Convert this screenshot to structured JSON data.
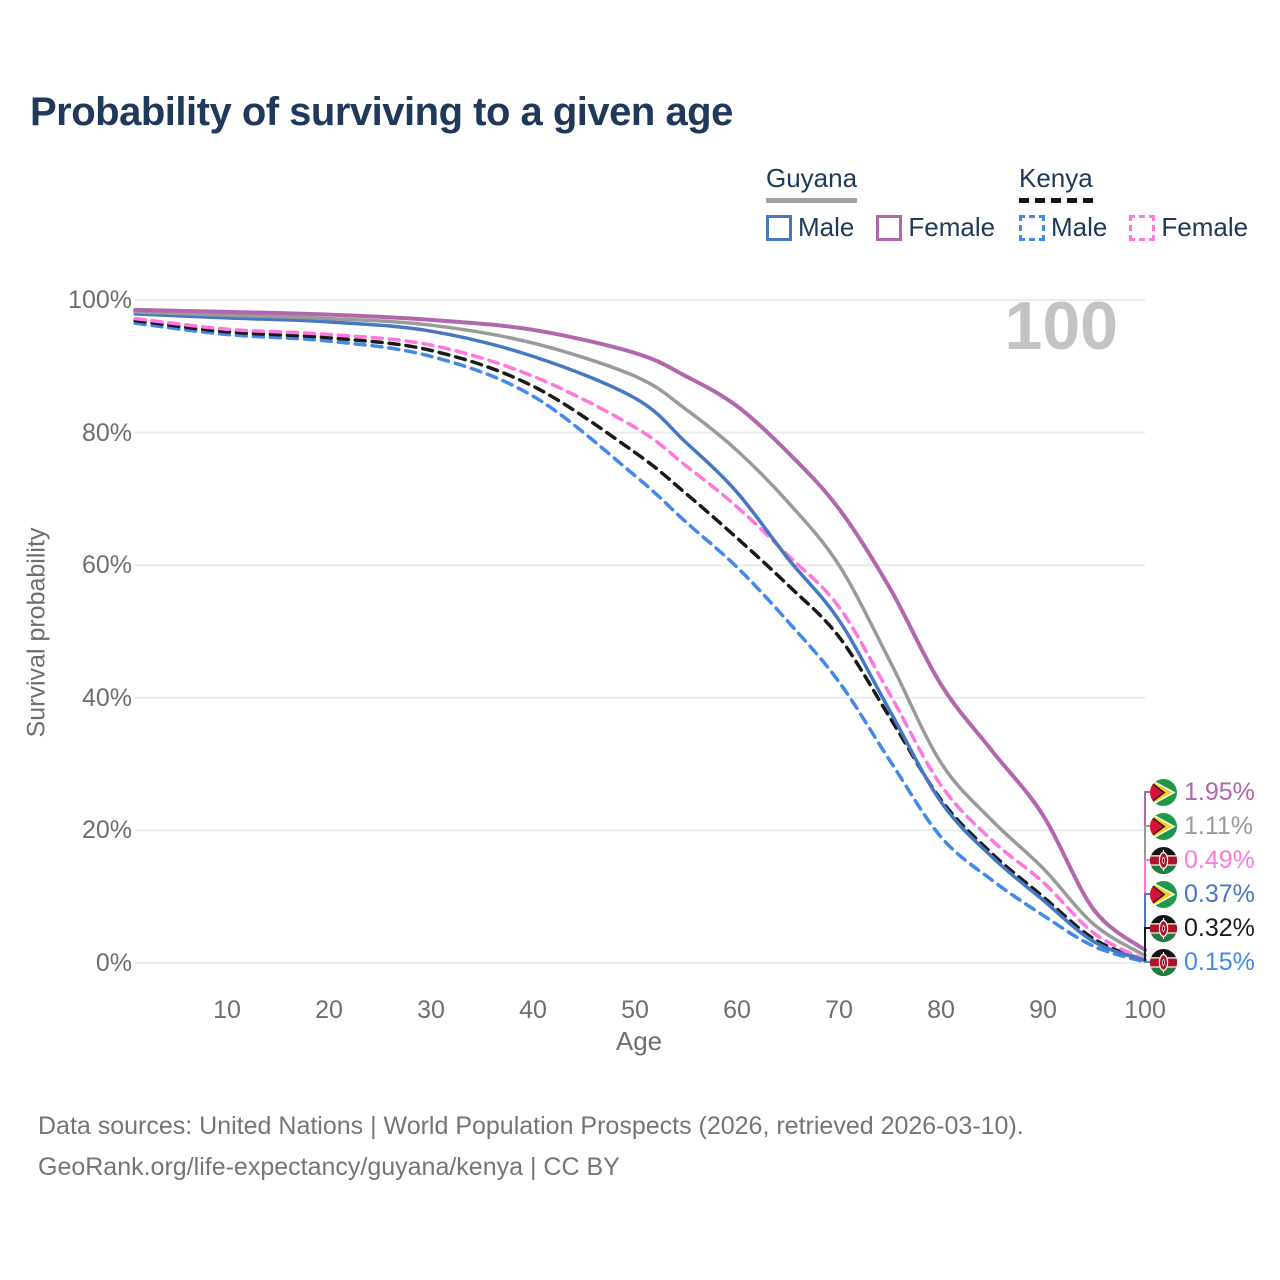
{
  "title": "Probability of surviving to a given age",
  "watermark": "100",
  "legend": {
    "groups": [
      {
        "country": "Guyana",
        "style": "solid",
        "items": [
          {
            "label": "Male",
            "color": "#4677c2"
          },
          {
            "label": "Female",
            "color": "#b266ad"
          }
        ]
      },
      {
        "country": "Kenya",
        "style": "dashed",
        "items": [
          {
            "label": "Male",
            "color": "#4289ec"
          },
          {
            "label": "Female",
            "color": "#ff77dd"
          }
        ]
      }
    ]
  },
  "axes": {
    "y_title": "Survival probability",
    "x_title": "Age",
    "y_ticks": [
      {
        "label": "100%",
        "value": 100
      },
      {
        "label": "80%",
        "value": 80
      },
      {
        "label": "60%",
        "value": 60
      },
      {
        "label": "40%",
        "value": 40
      },
      {
        "label": "20%",
        "value": 20
      },
      {
        "label": "0%",
        "value": 0
      }
    ],
    "x_ticks": [
      {
        "label": "10",
        "value": 10
      },
      {
        "label": "20",
        "value": 20
      },
      {
        "label": "30",
        "value": 30
      },
      {
        "label": "40",
        "value": 40
      },
      {
        "label": "50",
        "value": 50
      },
      {
        "label": "60",
        "value": 60
      },
      {
        "label": "70",
        "value": 70
      },
      {
        "label": "80",
        "value": 80
      },
      {
        "label": "90",
        "value": 90
      },
      {
        "label": "100",
        "value": 100
      }
    ]
  },
  "end_labels": [
    {
      "value": "1.95%",
      "country": "guyana",
      "color": "#b266ad"
    },
    {
      "value": "1.11%",
      "country": "guyana",
      "color": "#9a9a9a"
    },
    {
      "value": "0.49%",
      "country": "kenya",
      "color": "#ff77dd"
    },
    {
      "value": "0.37%",
      "country": "guyana",
      "color": "#4677c2"
    },
    {
      "value": "0.32%",
      "country": "kenya",
      "color": "#1a1a1a"
    },
    {
      "value": "0.15%",
      "country": "kenya",
      "color": "#4289ec"
    }
  ],
  "footer": {
    "line1": "Data sources: United Nations | World Population Prospects (2026, retrieved 2026-03-10).",
    "line2": "GeoRank.org/life-expectancy/guyana/kenya | CC BY"
  },
  "chart_data": {
    "type": "line",
    "title": "Probability of surviving to a given age",
    "xlabel": "Age",
    "ylabel": "Survival probability",
    "xlim": [
      1,
      100
    ],
    "ylim": [
      0,
      100
    ],
    "grid": "horizontal",
    "legend_position": "top-right",
    "x": [
      1,
      10,
      20,
      30,
      40,
      50,
      55,
      60,
      65,
      70,
      75,
      80,
      85,
      90,
      95,
      100
    ],
    "series": [
      {
        "name": "Kenya Male",
        "country": "Kenya",
        "sex": "Male",
        "style": "dashed",
        "color": "#4289ec",
        "end_value": 0.15,
        "values": [
          96.5,
          94.8,
          93.8,
          91.5,
          85.5,
          73.5,
          66.5,
          59.7,
          51.5,
          42.4,
          30.5,
          19.0,
          12.5,
          7.2,
          2.5,
          0.15
        ]
      },
      {
        "name": "Kenya",
        "country": "Kenya",
        "sex": "Both",
        "style": "dashed",
        "color": "#1a1a1a",
        "end_value": 0.32,
        "values": [
          96.9,
          95.2,
          94.3,
          92.4,
          87.0,
          77.0,
          70.8,
          64.1,
          57.0,
          49.2,
          37.0,
          24.6,
          16.5,
          10.0,
          3.6,
          0.32
        ]
      },
      {
        "name": "Kenya Female",
        "country": "Kenya",
        "sex": "Female",
        "style": "dashed",
        "color": "#ff77dd",
        "end_value": 0.49,
        "values": [
          97.2,
          95.6,
          94.8,
          93.2,
          88.5,
          80.8,
          75.0,
          68.8,
          61.5,
          53.7,
          40.5,
          26.8,
          18.5,
          12.2,
          4.5,
          0.49
        ]
      },
      {
        "name": "Guyana Male",
        "country": "Guyana",
        "sex": "Male",
        "style": "solid",
        "color": "#4677c2",
        "end_value": 0.37,
        "values": [
          97.9,
          97.3,
          96.7,
          95.3,
          91.5,
          85.2,
          78.5,
          71.0,
          61.0,
          51.7,
          38.0,
          24.3,
          16.0,
          9.5,
          3.2,
          0.37
        ]
      },
      {
        "name": "Guyana",
        "country": "Guyana",
        "sex": "Both",
        "style": "solid",
        "color": "#9a9a9a",
        "end_value": 1.11,
        "values": [
          98.2,
          97.7,
          97.2,
          96.2,
          93.5,
          88.5,
          83.5,
          77.3,
          69.5,
          60.0,
          45.5,
          30.2,
          21.5,
          14.3,
          5.8,
          1.11
        ]
      },
      {
        "name": "Guyana Female",
        "country": "Guyana",
        "sex": "Female",
        "style": "solid",
        "color": "#b266ad",
        "end_value": 1.95,
        "values": [
          98.5,
          98.2,
          97.8,
          97.0,
          95.5,
          92.0,
          88.5,
          84.0,
          77.0,
          68.5,
          56.5,
          42.0,
          32.0,
          22.3,
          8.0,
          1.95
        ]
      }
    ]
  }
}
